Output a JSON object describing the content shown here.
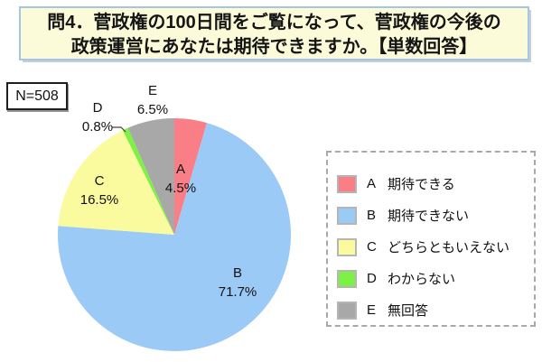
{
  "title": {
    "line1": "問4．菅政権の100日間をご覧になって、菅政権の今後の",
    "line2": "政策運営にあなたは期待できますか。【単数回答】"
  },
  "sample_size_label": "N=508",
  "colors": {
    "title_background": "#fbfbd9",
    "title_border": "#a5c6e3",
    "slice_a_red": "#f97e85",
    "slice_b_blue": "#9ccaf6",
    "slice_c_yellow": "#fafa9e",
    "slice_d_green": "#7df144",
    "slice_e_gray": "#a8a8a8"
  },
  "chart_data": {
    "type": "pie",
    "title": "問4．菅政権の100日間をご覧になって、菅政権の今後の政策運営にあなたは期待できますか。【単数回答】",
    "sample_size": 508,
    "total": 100,
    "start_angle_deg": 0,
    "direction": "clockwise",
    "legend_position": "right",
    "slices": [
      {
        "name": "A",
        "label": "期待できる",
        "value": 4.5,
        "pct_label": "4.5%",
        "color": "#f97e85"
      },
      {
        "name": "B",
        "label": "期待できない",
        "value": 71.7,
        "pct_label": "71.7%",
        "color": "#9ccaf6"
      },
      {
        "name": "C",
        "label": "どちらともいえない",
        "value": 16.5,
        "pct_label": "16.5%",
        "color": "#fafa9e"
      },
      {
        "name": "D",
        "label": "わからない",
        "value": 0.8,
        "pct_label": "0.8%",
        "color": "#7df144"
      },
      {
        "name": "E",
        "label": "無回答",
        "value": 6.5,
        "pct_label": "6.5%",
        "color": "#a8a8a8"
      }
    ]
  },
  "legend": {
    "items": [
      {
        "key": "A",
        "label": "期待できる"
      },
      {
        "key": "B",
        "label": "期待できない"
      },
      {
        "key": "C",
        "label": "どちらともいえない"
      },
      {
        "key": "D",
        "label": "わからない"
      },
      {
        "key": "E",
        "label": "無回答"
      }
    ]
  }
}
